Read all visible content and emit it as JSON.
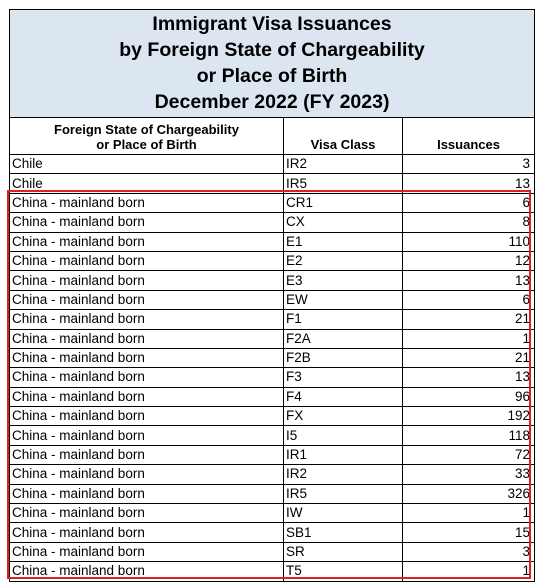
{
  "title": {
    "line1": "Immigrant Visa Issuances",
    "line2": "by Foreign State of Chargeability",
    "line3": "or Place of Birth",
    "line4": "December 2022 (FY 2023)"
  },
  "headers": {
    "country_line1": "Foreign State of Chargeability",
    "country_line2": "or Place of Birth",
    "visa_class": "Visa Class",
    "issuances": "Issuances"
  },
  "rows": [
    {
      "country": "Chile",
      "visa_class": "IR2",
      "issuances": "3"
    },
    {
      "country": "Chile",
      "visa_class": "IR5",
      "issuances": "13"
    },
    {
      "country": "China - mainland born",
      "visa_class": "CR1",
      "issuances": "6"
    },
    {
      "country": "China - mainland born",
      "visa_class": "CX",
      "issuances": "8"
    },
    {
      "country": "China - mainland born",
      "visa_class": "E1",
      "issuances": "110"
    },
    {
      "country": "China - mainland born",
      "visa_class": "E2",
      "issuances": "12"
    },
    {
      "country": "China - mainland born",
      "visa_class": "E3",
      "issuances": "13"
    },
    {
      "country": "China - mainland born",
      "visa_class": "EW",
      "issuances": "6"
    },
    {
      "country": "China - mainland born",
      "visa_class": "F1",
      "issuances": "21"
    },
    {
      "country": "China - mainland born",
      "visa_class": "F2A",
      "issuances": "1"
    },
    {
      "country": "China - mainland born",
      "visa_class": "F2B",
      "issuances": "21"
    },
    {
      "country": "China - mainland born",
      "visa_class": "F3",
      "issuances": "13"
    },
    {
      "country": "China - mainland born",
      "visa_class": "F4",
      "issuances": "96"
    },
    {
      "country": "China - mainland born",
      "visa_class": "FX",
      "issuances": "192"
    },
    {
      "country": "China - mainland born",
      "visa_class": "I5",
      "issuances": "118"
    },
    {
      "country": "China - mainland born",
      "visa_class": "IR1",
      "issuances": "72"
    },
    {
      "country": "China - mainland born",
      "visa_class": "IR2",
      "issuances": "33"
    },
    {
      "country": "China - mainland born",
      "visa_class": "IR5",
      "issuances": "326"
    },
    {
      "country": "China - mainland born",
      "visa_class": "IW",
      "issuances": "1"
    },
    {
      "country": "China - mainland born",
      "visa_class": "SB1",
      "issuances": "15"
    },
    {
      "country": "China - mainland born",
      "visa_class": "SR",
      "issuances": "3"
    },
    {
      "country": "China - mainland born",
      "visa_class": "T5",
      "issuances": "1"
    }
  ],
  "highlight_color": "#e02020",
  "title_background": "#dce6f1"
}
